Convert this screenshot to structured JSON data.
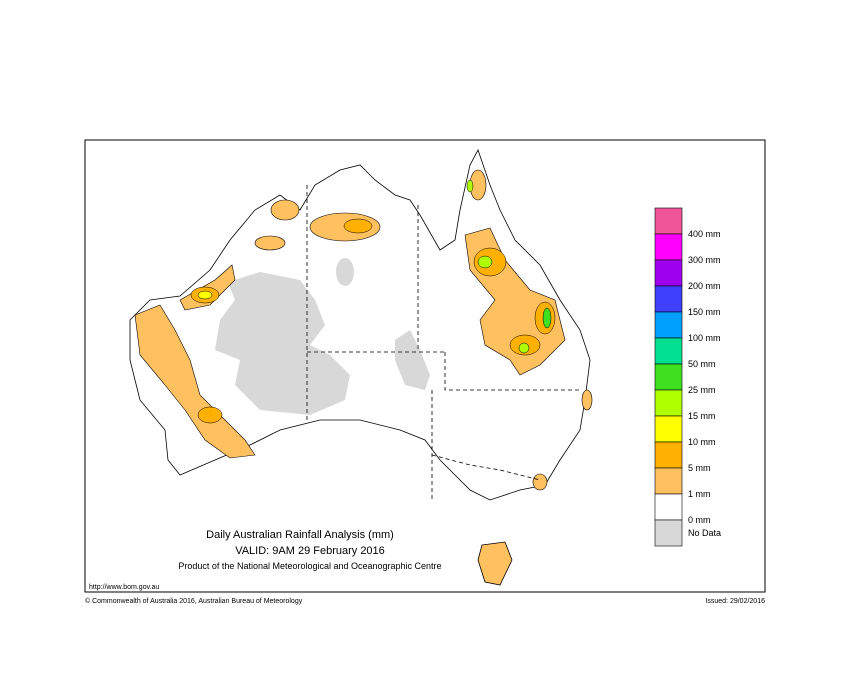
{
  "map": {
    "title": "Daily Australian Rainfall Analysis (mm)",
    "valid": "VALID: 9AM 29 February 2016",
    "product": "Product of the National Meteorological and Oceanographic Centre",
    "url": "http://www.bom.gov.au",
    "copyright": "© Commonwealth of Australia 2016, Australian Bureau of Meteorology",
    "issued": "Issued: 29/02/2016",
    "legend": {
      "colors": [
        "#f0559a",
        "#ff00ff",
        "#a000f0",
        "#4040ff",
        "#00a0ff",
        "#00e090",
        "#40e020",
        "#b0ff00",
        "#ffff00",
        "#ffb000",
        "#ffc060",
        "#ffffff",
        "#d8d8d8"
      ],
      "labels": [
        "400 mm",
        "300 mm",
        "200 mm",
        "150 mm",
        "100 mm",
        "50 mm",
        "25 mm",
        "15 mm",
        "10 mm",
        "5 mm",
        "1 mm",
        "0 mm",
        "No Data"
      ]
    }
  }
}
